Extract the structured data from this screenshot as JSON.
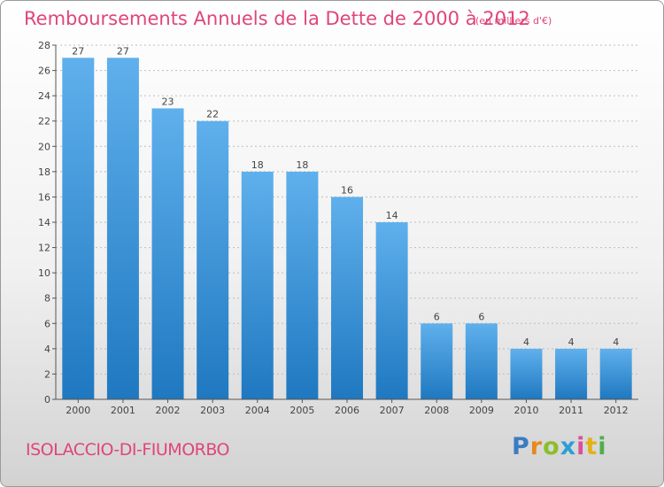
{
  "header": {
    "title": "Remboursements Annuels de la Dette de 2000 à 2012",
    "unit": "(en milliers d'€)"
  },
  "footer": {
    "commune": "ISOLACCIO-DI-FIUMORBO",
    "logo_text": "Proxiti",
    "logo_colors": [
      "#3a7cc2",
      "#e58a1f",
      "#8bbf2a",
      "#2a9fd6",
      "#d94f9b",
      "#e0b219",
      "#4fae4a"
    ]
  },
  "colors": {
    "bar_light": "#5fb0ec",
    "bar_dark": "#1f78c0",
    "accent": "#e0457b",
    "grid": "#bdbdbd"
  },
  "chart_data": {
    "type": "bar",
    "categories": [
      "2000",
      "2001",
      "2002",
      "2003",
      "2004",
      "2005",
      "2006",
      "2007",
      "2008",
      "2009",
      "2010",
      "2011",
      "2012"
    ],
    "values": [
      27,
      27,
      23,
      22,
      18,
      18,
      16,
      14,
      6,
      6,
      4,
      4,
      4
    ],
    "data_labels": [
      "27",
      "27",
      "23",
      "22",
      "18",
      "18",
      "16",
      "14",
      "6",
      "6",
      "4",
      "4",
      "4"
    ],
    "y_ticks": [
      "0",
      "2",
      "4",
      "6",
      "8",
      "10",
      "12",
      "14",
      "16",
      "18",
      "20",
      "22",
      "24",
      "26",
      "28"
    ],
    "ylim": [
      0,
      28
    ],
    "grid": true,
    "legend": "none"
  }
}
